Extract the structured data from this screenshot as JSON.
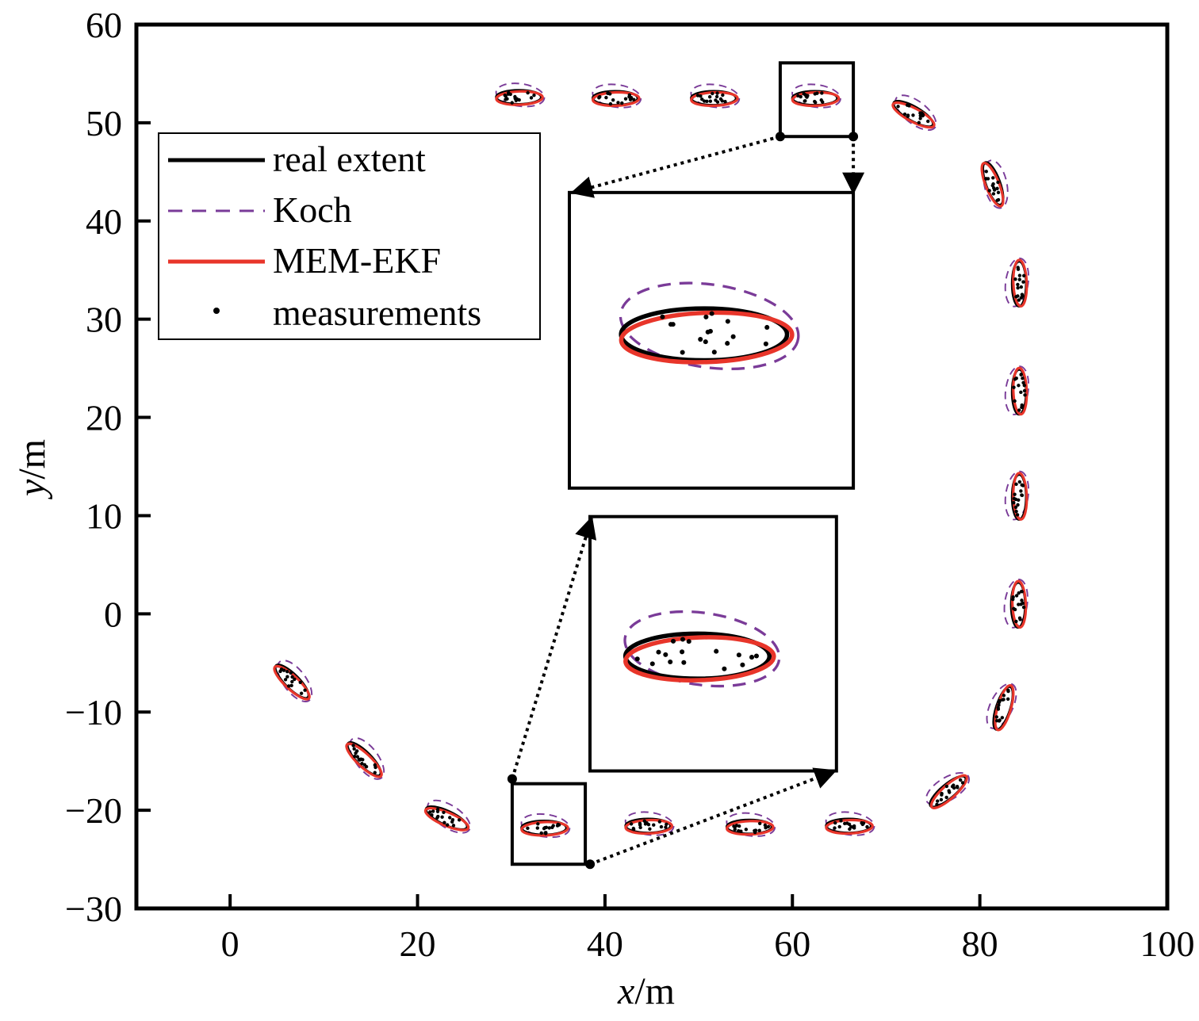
{
  "chart_data": {
    "type": "scatter",
    "xlabel_var": "x",
    "xlabel_unit": "/m",
    "ylabel_var": "y",
    "ylabel_unit": "/m",
    "xlim": [
      -10,
      100
    ],
    "ylim": [
      -30,
      60
    ],
    "x_ticks": [
      0,
      20,
      40,
      60,
      80,
      100
    ],
    "y_ticks": [
      -30,
      -20,
      -10,
      0,
      10,
      20,
      30,
      40,
      50,
      60
    ],
    "x_tick_labels": [
      "0",
      "20",
      "40",
      "60",
      "80",
      "100"
    ],
    "y_tick_labels": [
      "−30",
      "−20",
      "−10",
      "0",
      "10",
      "20",
      "30",
      "40",
      "50",
      "60"
    ],
    "grid": false,
    "legend_position": "top-left",
    "legend": [
      {
        "label": "real extent",
        "style": "solid",
        "color": "#000000"
      },
      {
        "label": "Koch",
        "style": "dashed",
        "color": "#7a3b98"
      },
      {
        "label": "MEM-EKF",
        "style": "solid",
        "color": "#e8352a"
      },
      {
        "label": "measurements",
        "style": "dot",
        "color": "#000000"
      }
    ],
    "colors": {
      "real": "#000000",
      "koch": "#7a3b98",
      "mem": "#e8352a",
      "measurements": "#000000"
    },
    "extents": [
      {
        "cx": 6.6,
        "cy": -6.9,
        "a": 2.4,
        "b": 0.75,
        "angle": -45
      },
      {
        "cx": 14.3,
        "cy": -14.8,
        "a": 2.4,
        "b": 0.75,
        "angle": -45
      },
      {
        "cx": 23.1,
        "cy": -20.8,
        "a": 2.4,
        "b": 0.75,
        "angle": -25
      },
      {
        "cx": 33.5,
        "cy": -21.8,
        "a": 2.4,
        "b": 0.75,
        "angle": 0
      },
      {
        "cx": 44.6,
        "cy": -21.6,
        "a": 2.4,
        "b": 0.75,
        "angle": 0
      },
      {
        "cx": 55.4,
        "cy": -21.7,
        "a": 2.4,
        "b": 0.75,
        "angle": 0
      },
      {
        "cx": 66.0,
        "cy": -21.6,
        "a": 2.4,
        "b": 0.75,
        "angle": 0
      },
      {
        "cx": 76.6,
        "cy": -18.1,
        "a": 2.4,
        "b": 0.75,
        "angle": 40
      },
      {
        "cx": 82.5,
        "cy": -9.6,
        "a": 2.4,
        "b": 0.75,
        "angle": 72
      },
      {
        "cx": 84.1,
        "cy": 0.9,
        "a": 2.4,
        "b": 0.75,
        "angle": 90
      },
      {
        "cx": 84.2,
        "cy": 11.9,
        "a": 2.4,
        "b": 0.75,
        "angle": 90
      },
      {
        "cx": 84.2,
        "cy": 22.6,
        "a": 2.4,
        "b": 0.75,
        "angle": 90
      },
      {
        "cx": 84.2,
        "cy": 33.6,
        "a": 2.4,
        "b": 0.75,
        "angle": 90
      },
      {
        "cx": 81.4,
        "cy": 43.8,
        "a": 2.4,
        "b": 0.75,
        "angle": -70
      },
      {
        "cx": 72.9,
        "cy": 50.9,
        "a": 2.4,
        "b": 0.75,
        "angle": -30
      },
      {
        "cx": 62.4,
        "cy": 52.5,
        "a": 2.4,
        "b": 0.75,
        "angle": 0
      },
      {
        "cx": 51.6,
        "cy": 52.5,
        "a": 2.4,
        "b": 0.75,
        "angle": 0
      },
      {
        "cx": 41.1,
        "cy": 52.5,
        "a": 2.4,
        "b": 0.75,
        "angle": 0
      },
      {
        "cx": 30.8,
        "cy": 52.6,
        "a": 2.4,
        "b": 0.75,
        "angle": 0
      }
    ],
    "insets": [
      {
        "source": {
          "x": [
            58.7,
            66.5
          ],
          "y": [
            48.6,
            56.1
          ]
        },
        "view": {
          "x": [
            36.2,
            66.5
          ],
          "y": [
            12.8,
            42.9
          ]
        }
      },
      {
        "source": {
          "x": [
            30.1,
            37.9
          ],
          "y": [
            -25.5,
            -17.3
          ]
        },
        "view": {
          "x": [
            38.4,
            64.7
          ],
          "y": [
            -16.0,
            9.9
          ]
        }
      }
    ]
  }
}
